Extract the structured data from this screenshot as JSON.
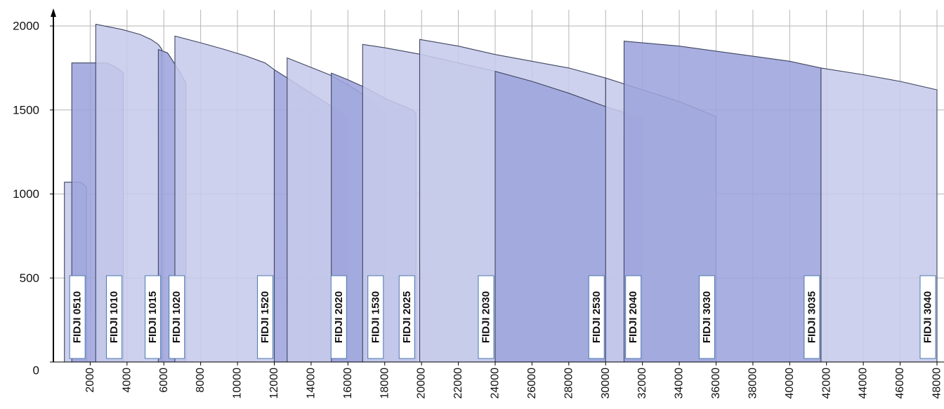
{
  "chart_data": {
    "type": "area",
    "title": "",
    "xlabel": "",
    "ylabel": "",
    "xlim": [
      0,
      48000
    ],
    "ylim": [
      0,
      2000
    ],
    "grid": true,
    "y_ticks": [
      "0",
      "500",
      "1000",
      "1500",
      "2000"
    ],
    "x_ticks": [
      "2000",
      "4000",
      "6000",
      "8000",
      "10000",
      "12000",
      "14000",
      "16000",
      "18000",
      "20000",
      "22000",
      "24000",
      "26000",
      "28000",
      "30000",
      "32000",
      "34000",
      "36000",
      "38000",
      "40000",
      "42000",
      "44000",
      "46000",
      "48000"
    ],
    "colors": {
      "light": "#c6cbea",
      "dark": "#9da4dc",
      "outline": "#3f4560",
      "grid": "#b5b5b5"
    },
    "series": [
      {
        "name": "FIDJI 0510",
        "shade": "light",
        "x": [
          600,
          1500,
          1800,
          1800
        ],
        "y": [
          1070,
          1070,
          1040,
          0
        ]
      },
      {
        "name": "FIDJI 1010",
        "shade": "dark",
        "x": [
          1000,
          1000,
          2300,
          2900,
          3300,
          3600,
          3800,
          3800
        ],
        "y": [
          1780,
          1780,
          1780,
          1780,
          1760,
          1740,
          1720,
          0
        ]
      },
      {
        "name": "FIDJI 1015",
        "shade": "light",
        "x": [
          2300,
          2300,
          3700,
          4700,
          5300,
          5700,
          5900,
          5900
        ],
        "y": [
          1820,
          2010,
          1980,
          1950,
          1920,
          1890,
          1860,
          0
        ]
      },
      {
        "name": "FIDJI 1020",
        "shade": "dark",
        "x": [
          5700,
          5700,
          6200,
          6500,
          6800,
          7000,
          7200,
          7200
        ],
        "y": [
          1860,
          1860,
          1840,
          1790,
          1740,
          1700,
          1660,
          0
        ]
      },
      {
        "name": "FIDJI 1520",
        "shade": "light",
        "x": [
          6600,
          6600,
          8000,
          9300,
          10500,
          11500,
          12000,
          12000
        ],
        "y": [
          1790,
          1940,
          1900,
          1860,
          1820,
          1780,
          1740,
          0
        ]
      },
      {
        "name": "FIDJI 2020",
        "shade": "dark",
        "x": [
          12000,
          12000,
          13000,
          14000,
          15000,
          16000,
          16000
        ],
        "y": [
          1740,
          1740,
          1670,
          1600,
          1530,
          1450,
          0
        ]
      },
      {
        "name": "FIDJI 1530",
        "shade": "light",
        "x": [
          12700,
          12700,
          15000,
          16000,
          17000,
          18000,
          18000
        ],
        "y": [
          1690,
          1810,
          1710,
          1650,
          1580,
          1470,
          0
        ]
      },
      {
        "name": "FIDJI 2025",
        "shade": "dark",
        "x": [
          15100,
          15100,
          16000,
          17000,
          18000,
          19500,
          19700,
          19700
        ],
        "y": [
          1680,
          1720,
          1680,
          1630,
          1570,
          1500,
          1480,
          0
        ]
      },
      {
        "name": "FIDJI 2030",
        "shade": "light",
        "x": [
          16800,
          16800,
          18000,
          20000,
          22000,
          24000,
          24000
        ],
        "y": [
          1640,
          1890,
          1870,
          1830,
          1780,
          1730,
          0
        ]
      },
      {
        "name": "FIDJI 2530",
        "shade": "light",
        "x": [
          19900,
          19900,
          22000,
          24000,
          26000,
          28000,
          30000,
          30000
        ],
        "y": [
          1870,
          1920,
          1880,
          1830,
          1790,
          1750,
          1690,
          0
        ]
      },
      {
        "name": "FIDJI 2040",
        "shade": "dark",
        "x": [
          24000,
          24000,
          26000,
          28000,
          30000,
          32000,
          32000
        ],
        "y": [
          1730,
          1730,
          1670,
          1600,
          1520,
          1450,
          0
        ]
      },
      {
        "name": "FIDJI 3030",
        "shade": "light",
        "x": [
          30000,
          30000,
          32000,
          34000,
          36000,
          36000
        ],
        "y": [
          1690,
          1690,
          1620,
          1550,
          1460,
          0
        ]
      },
      {
        "name": "FIDJI 3035",
        "shade": "dark",
        "x": [
          31000,
          31000,
          34000,
          36000,
          38000,
          40000,
          41700,
          41700
        ],
        "y": [
          1650,
          1910,
          1880,
          1850,
          1820,
          1790,
          1750,
          0
        ]
      },
      {
        "name": "FIDJI 3040",
        "shade": "light",
        "x": [
          41700,
          41700,
          44000,
          46000,
          48000,
          48000
        ],
        "y": [
          1750,
          1750,
          1710,
          1670,
          1620,
          0
        ]
      }
    ]
  }
}
